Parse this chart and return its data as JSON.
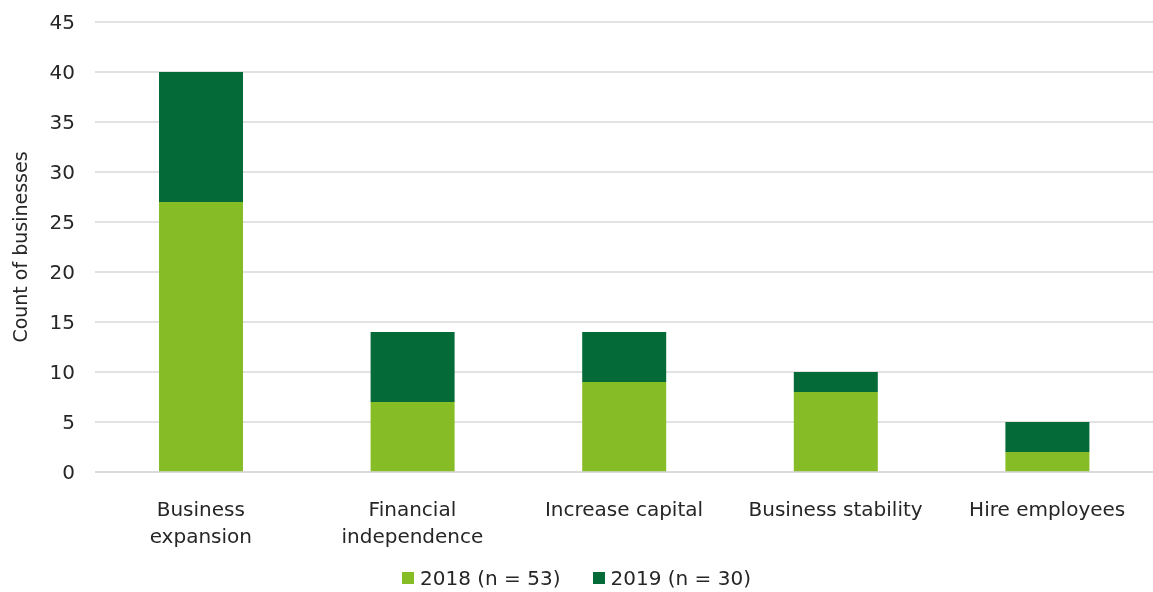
{
  "chart_data": {
    "type": "bar",
    "stacked": true,
    "ylabel": "Count of businesses",
    "categories": [
      "Business expansion",
      "Financial independence",
      "Increase capital",
      "Business stability",
      "Hire employees"
    ],
    "series": [
      {
        "name": "2018 (n = 53)",
        "color": "#86bc25",
        "values": [
          27,
          7,
          9,
          8,
          2
        ]
      },
      {
        "name": "2019 (n = 30)",
        "color": "#046a38",
        "values": [
          13,
          7,
          5,
          2,
          3
        ]
      }
    ],
    "ylim": [
      0,
      45
    ],
    "yticks": [
      0,
      5,
      10,
      15,
      20,
      25,
      30,
      35,
      40,
      45
    ],
    "grid": "y",
    "legend": "bottom"
  }
}
